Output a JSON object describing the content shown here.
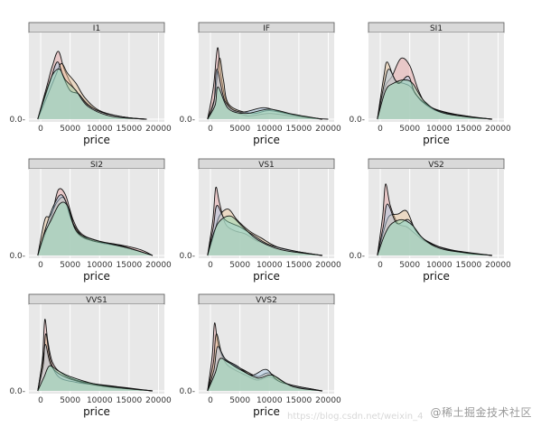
{
  "chart_data": {
    "type": "area",
    "subtype": "faceted-density",
    "facets": [
      "I1",
      "IF",
      "SI1",
      "SI2",
      "VS1",
      "VS2",
      "VVS1",
      "VVS2"
    ],
    "x_label": "price",
    "x_ticks": [
      0,
      5000,
      10000,
      15000,
      20000
    ],
    "xlim": [
      -2000,
      21000
    ],
    "y_tick_label": "0.0",
    "grid": true,
    "panel_background": "#e8e8e8",
    "strip_background": "#d9d9d9",
    "palette": [
      "#e8a2a2",
      "#f0c79a",
      "#a9c9e6",
      "#8fdcb4",
      "#c9a6d9"
    ],
    "curves": {
      "I1": [
        [
          [
            -500,
            0
          ],
          [
            1000,
            0.45
          ],
          [
            2000,
            0.75
          ],
          [
            3000,
            0.95
          ],
          [
            4000,
            0.7
          ],
          [
            5500,
            0.45
          ],
          [
            7000,
            0.3
          ],
          [
            9000,
            0.15
          ],
          [
            12000,
            0.06
          ],
          [
            15000,
            0.02
          ],
          [
            18000,
            0
          ]
        ],
        [
          [
            -500,
            0
          ],
          [
            1000,
            0.3
          ],
          [
            2500,
            0.6
          ],
          [
            3500,
            0.78
          ],
          [
            4500,
            0.65
          ],
          [
            6000,
            0.5
          ],
          [
            7500,
            0.3
          ],
          [
            10000,
            0.12
          ],
          [
            14000,
            0.03
          ],
          [
            18000,
            0
          ]
        ],
        [
          [
            -500,
            0
          ],
          [
            1500,
            0.5
          ],
          [
            2800,
            0.8
          ],
          [
            3800,
            0.6
          ],
          [
            5000,
            0.4
          ],
          [
            6500,
            0.35
          ],
          [
            8000,
            0.2
          ],
          [
            11000,
            0.08
          ],
          [
            16000,
            0.01
          ],
          [
            18000,
            0
          ]
        ],
        [
          [
            -500,
            0
          ],
          [
            800,
            0.35
          ],
          [
            2000,
            0.62
          ],
          [
            3200,
            0.7
          ],
          [
            4200,
            0.55
          ],
          [
            6000,
            0.4
          ],
          [
            8000,
            0.18
          ],
          [
            12000,
            0.04
          ],
          [
            18000,
            0
          ]
        ]
      ],
      "IF": [
        [
          [
            -500,
            0
          ],
          [
            500,
            0.45
          ],
          [
            1200,
            1.0
          ],
          [
            1800,
            0.6
          ],
          [
            3000,
            0.2
          ],
          [
            6000,
            0.05
          ],
          [
            10000,
            0.08
          ],
          [
            14000,
            0.04
          ],
          [
            18000,
            0.01
          ],
          [
            20000,
            0
          ]
        ],
        [
          [
            -500,
            0
          ],
          [
            700,
            0.3
          ],
          [
            1500,
            0.85
          ],
          [
            2200,
            0.55
          ],
          [
            3200,
            0.2
          ],
          [
            7000,
            0.08
          ],
          [
            10000,
            0.12
          ],
          [
            14000,
            0.06
          ],
          [
            19000,
            0
          ]
        ],
        [
          [
            -500,
            0
          ],
          [
            600,
            0.25
          ],
          [
            1100,
            0.7
          ],
          [
            2500,
            0.25
          ],
          [
            5000,
            0.1
          ],
          [
            9000,
            0.16
          ],
          [
            12000,
            0.1
          ],
          [
            16000,
            0.03
          ],
          [
            19000,
            0
          ]
        ],
        [
          [
            -500,
            0
          ],
          [
            800,
            0.2
          ],
          [
            1300,
            0.45
          ],
          [
            3000,
            0.15
          ],
          [
            6000,
            0.08
          ],
          [
            10000,
            0.14
          ],
          [
            14000,
            0.07
          ],
          [
            19000,
            0
          ]
        ]
      ],
      "SI1": [
        [
          [
            -500,
            0
          ],
          [
            800,
            0.45
          ],
          [
            2000,
            0.6
          ],
          [
            3500,
            0.85
          ],
          [
            5000,
            0.75
          ],
          [
            6500,
            0.4
          ],
          [
            8000,
            0.2
          ],
          [
            11000,
            0.1
          ],
          [
            15000,
            0.04
          ],
          [
            19000,
            0
          ]
        ],
        [
          [
            -500,
            0
          ],
          [
            600,
            0.6
          ],
          [
            1200,
            0.8
          ],
          [
            2500,
            0.55
          ],
          [
            4000,
            0.5
          ],
          [
            5200,
            0.45
          ],
          [
            7000,
            0.25
          ],
          [
            10000,
            0.1
          ],
          [
            15000,
            0.03
          ],
          [
            19000,
            0
          ]
        ],
        [
          [
            -500,
            0
          ],
          [
            700,
            0.5
          ],
          [
            1500,
            0.7
          ],
          [
            3000,
            0.5
          ],
          [
            4800,
            0.6
          ],
          [
            6000,
            0.35
          ],
          [
            9000,
            0.15
          ],
          [
            14000,
            0.04
          ],
          [
            19000,
            0
          ]
        ],
        [
          [
            -500,
            0
          ],
          [
            900,
            0.4
          ],
          [
            2200,
            0.5
          ],
          [
            4000,
            0.55
          ],
          [
            5500,
            0.5
          ],
          [
            7500,
            0.25
          ],
          [
            11000,
            0.08
          ],
          [
            19000,
            0
          ]
        ]
      ],
      "SI2": [
        [
          [
            -500,
            0
          ],
          [
            1000,
            0.35
          ],
          [
            2000,
            0.6
          ],
          [
            3000,
            0.92
          ],
          [
            4200,
            0.85
          ],
          [
            5500,
            0.5
          ],
          [
            7000,
            0.3
          ],
          [
            10000,
            0.2
          ],
          [
            14000,
            0.14
          ],
          [
            17000,
            0.08
          ],
          [
            19000,
            0
          ]
        ],
        [
          [
            -500,
            0
          ],
          [
            700,
            0.5
          ],
          [
            1600,
            0.55
          ],
          [
            2800,
            0.75
          ],
          [
            4000,
            0.8
          ],
          [
            5200,
            0.5
          ],
          [
            7000,
            0.28
          ],
          [
            10000,
            0.18
          ],
          [
            14000,
            0.12
          ],
          [
            19000,
            0
          ]
        ],
        [
          [
            -500,
            0
          ],
          [
            900,
            0.4
          ],
          [
            2200,
            0.7
          ],
          [
            3500,
            0.85
          ],
          [
            4800,
            0.65
          ],
          [
            6200,
            0.32
          ],
          [
            9000,
            0.2
          ],
          [
            13000,
            0.15
          ],
          [
            19000,
            0
          ]
        ],
        [
          [
            -500,
            0
          ],
          [
            600,
            0.3
          ],
          [
            1800,
            0.5
          ],
          [
            3200,
            0.72
          ],
          [
            4500,
            0.7
          ],
          [
            6000,
            0.35
          ],
          [
            9000,
            0.22
          ],
          [
            15000,
            0.1
          ],
          [
            19000,
            0
          ]
        ]
      ],
      "VS1": [
        [
          [
            -500,
            0
          ],
          [
            400,
            0.5
          ],
          [
            900,
            0.95
          ],
          [
            1500,
            0.75
          ],
          [
            2500,
            0.45
          ],
          [
            4000,
            0.35
          ],
          [
            6000,
            0.3
          ],
          [
            8000,
            0.2
          ],
          [
            12000,
            0.1
          ],
          [
            16000,
            0.03
          ],
          [
            19000,
            0
          ]
        ],
        [
          [
            -500,
            0
          ],
          [
            600,
            0.3
          ],
          [
            1500,
            0.55
          ],
          [
            3000,
            0.65
          ],
          [
            4500,
            0.5
          ],
          [
            6500,
            0.35
          ],
          [
            8500,
            0.25
          ],
          [
            12000,
            0.1
          ],
          [
            19000,
            0
          ]
        ],
        [
          [
            -500,
            0
          ],
          [
            500,
            0.4
          ],
          [
            1100,
            0.7
          ],
          [
            2500,
            0.5
          ],
          [
            5000,
            0.4
          ],
          [
            7000,
            0.3
          ],
          [
            10000,
            0.15
          ],
          [
            15000,
            0.05
          ],
          [
            19000,
            0
          ]
        ],
        [
          [
            -500,
            0
          ],
          [
            700,
            0.35
          ],
          [
            1800,
            0.5
          ],
          [
            3500,
            0.55
          ],
          [
            5500,
            0.4
          ],
          [
            8000,
            0.22
          ],
          [
            12000,
            0.08
          ],
          [
            19000,
            0
          ]
        ]
      ],
      "VS2": [
        [
          [
            -500,
            0
          ],
          [
            400,
            0.55
          ],
          [
            900,
            1.0
          ],
          [
            1700,
            0.7
          ],
          [
            3000,
            0.45
          ],
          [
            4500,
            0.4
          ],
          [
            6000,
            0.3
          ],
          [
            8000,
            0.18
          ],
          [
            12000,
            0.08
          ],
          [
            16000,
            0.03
          ],
          [
            19000,
            0
          ]
        ],
        [
          [
            -500,
            0
          ],
          [
            600,
            0.35
          ],
          [
            1500,
            0.55
          ],
          [
            3000,
            0.58
          ],
          [
            4500,
            0.62
          ],
          [
            6000,
            0.35
          ],
          [
            8000,
            0.2
          ],
          [
            12000,
            0.07
          ],
          [
            19000,
            0
          ]
        ],
        [
          [
            -500,
            0
          ],
          [
            500,
            0.4
          ],
          [
            1200,
            0.72
          ],
          [
            2800,
            0.45
          ],
          [
            4800,
            0.5
          ],
          [
            6500,
            0.3
          ],
          [
            9000,
            0.15
          ],
          [
            14000,
            0.04
          ],
          [
            19000,
            0
          ]
        ],
        [
          [
            -500,
            0
          ],
          [
            800,
            0.3
          ],
          [
            2000,
            0.45
          ],
          [
            3800,
            0.5
          ],
          [
            5500,
            0.42
          ],
          [
            7500,
            0.22
          ],
          [
            11000,
            0.08
          ],
          [
            19000,
            0
          ]
        ]
      ],
      "VVS1": [
        [
          [
            -500,
            0
          ],
          [
            300,
            0.45
          ],
          [
            700,
            1.0
          ],
          [
            1200,
            0.7
          ],
          [
            2000,
            0.4
          ],
          [
            3500,
            0.25
          ],
          [
            6000,
            0.15
          ],
          [
            9000,
            0.1
          ],
          [
            13000,
            0.06
          ],
          [
            17000,
            0.02
          ],
          [
            19000,
            0
          ]
        ],
        [
          [
            -500,
            0
          ],
          [
            500,
            0.5
          ],
          [
            900,
            0.8
          ],
          [
            1600,
            0.45
          ],
          [
            3000,
            0.2
          ],
          [
            6000,
            0.12
          ],
          [
            10000,
            0.08
          ],
          [
            15000,
            0.03
          ],
          [
            19000,
            0
          ]
        ],
        [
          [
            -500,
            0
          ],
          [
            400,
            0.35
          ],
          [
            800,
            0.65
          ],
          [
            1800,
            0.35
          ],
          [
            4000,
            0.2
          ],
          [
            8000,
            0.1
          ],
          [
            12000,
            0.05
          ],
          [
            19000,
            0
          ]
        ],
        [
          [
            -500,
            0
          ],
          [
            600,
            0.2
          ],
          [
            1500,
            0.35
          ],
          [
            3000,
            0.28
          ],
          [
            5000,
            0.2
          ],
          [
            9000,
            0.1
          ],
          [
            14000,
            0.04
          ],
          [
            19000,
            0
          ]
        ]
      ],
      "VVS2": [
        [
          [
            -500,
            0
          ],
          [
            300,
            0.5
          ],
          [
            700,
            0.95
          ],
          [
            1300,
            0.65
          ],
          [
            2500,
            0.4
          ],
          [
            4000,
            0.3
          ],
          [
            6000,
            0.22
          ],
          [
            8000,
            0.15
          ],
          [
            10000,
            0.2
          ],
          [
            12000,
            0.12
          ],
          [
            16000,
            0.03
          ],
          [
            19000,
            0
          ]
        ],
        [
          [
            -500,
            0
          ],
          [
            500,
            0.4
          ],
          [
            1000,
            0.8
          ],
          [
            2000,
            0.5
          ],
          [
            3500,
            0.38
          ],
          [
            5500,
            0.3
          ],
          [
            8000,
            0.2
          ],
          [
            10000,
            0.25
          ],
          [
            13000,
            0.1
          ],
          [
            19000,
            0
          ]
        ],
        [
          [
            -500,
            0
          ],
          [
            600,
            0.3
          ],
          [
            1200,
            0.62
          ],
          [
            2500,
            0.45
          ],
          [
            4500,
            0.35
          ],
          [
            7000,
            0.22
          ],
          [
            9500,
            0.3
          ],
          [
            12000,
            0.12
          ],
          [
            19000,
            0
          ]
        ],
        [
          [
            -500,
            0
          ],
          [
            800,
            0.25
          ],
          [
            1600,
            0.45
          ],
          [
            3000,
            0.4
          ],
          [
            5000,
            0.3
          ],
          [
            8000,
            0.18
          ],
          [
            10500,
            0.22
          ],
          [
            14000,
            0.06
          ],
          [
            19000,
            0
          ]
        ]
      ]
    }
  },
  "watermark": "@稀土掘金技术社区",
  "watermark_url": "https://blog.csdn.net/weixin_4"
}
